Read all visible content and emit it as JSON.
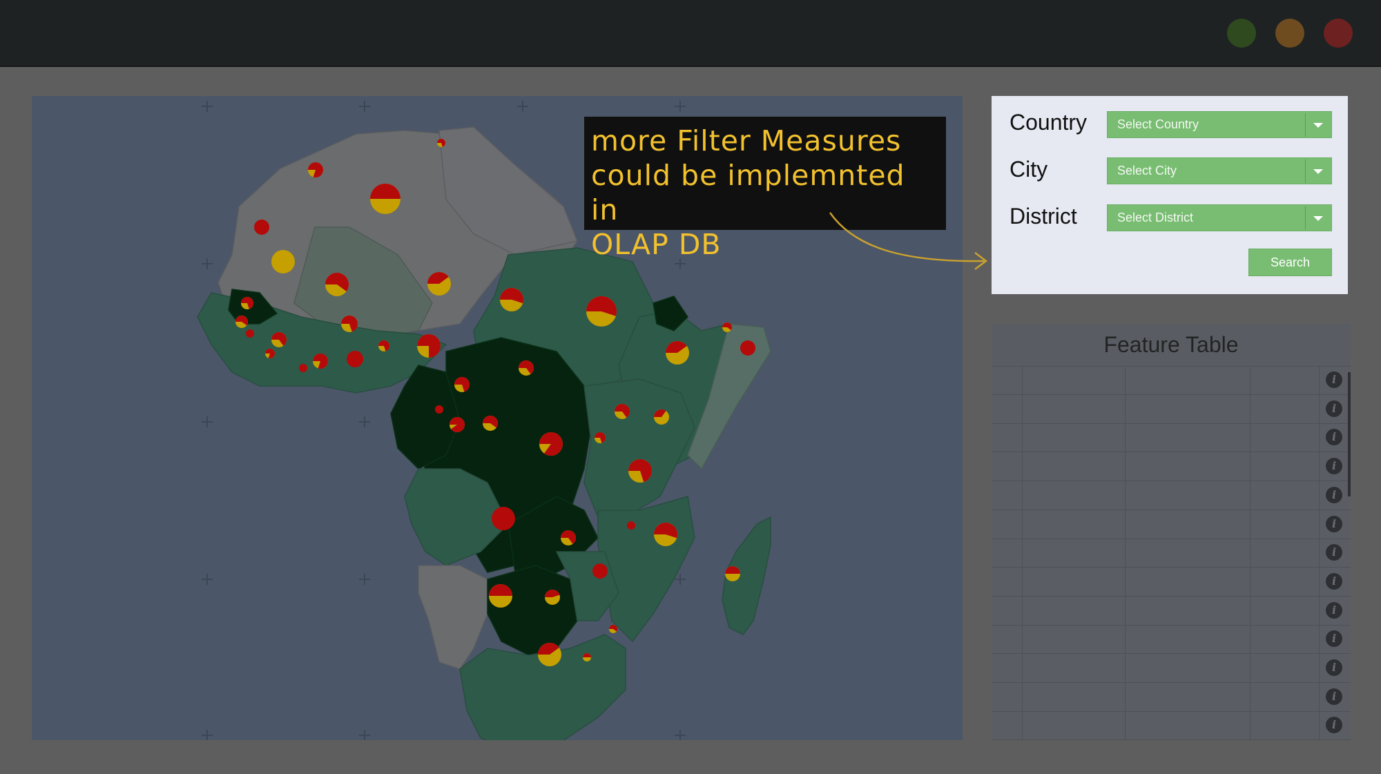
{
  "window": {
    "buttons": [
      {
        "name": "maximize",
        "color": "#2f4a1f"
      },
      {
        "name": "minimize",
        "color": "#6e4c1f"
      },
      {
        "name": "close",
        "color": "#6e2121"
      }
    ]
  },
  "callout": {
    "lines": [
      "more Filter Measures",
      "could be implemnted in",
      "OLAP DB"
    ]
  },
  "filter": {
    "country": {
      "label": "Country",
      "value": "Select Country"
    },
    "city": {
      "label": "City",
      "value": "Select City"
    },
    "district": {
      "label": "District",
      "value": "Select District"
    },
    "search_label": "Search"
  },
  "feature_table": {
    "title": "Feature Table",
    "row_count": 13
  },
  "colors": {
    "ocean": "#4b5668",
    "land_light": "#6a6c6e",
    "land_mid": "#2e5a4a",
    "land_dark": "#06230f",
    "pie_red": "#b50a0a",
    "pie_yellow": "#c5a000",
    "accent": "#78bd72",
    "callout_text": "#f2c12e"
  }
}
